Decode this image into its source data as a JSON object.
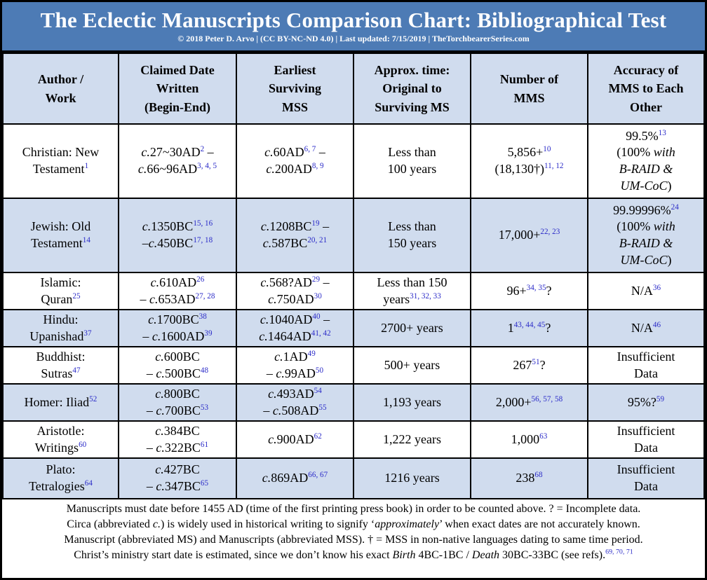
{
  "colors": {
    "band_bg": "#4d7bb5",
    "row_alt_bg": "#d0dcee",
    "header_bg": "#d0dcee",
    "sup": "#2b2bc8",
    "border": "#000000",
    "title_text": "#ffffff"
  },
  "header": {
    "title": "The Eclectic Manuscripts Comparison Chart: Bibliographical Test",
    "subtitle": "© 2018 Peter D. Arvo | (CC BY-NC-ND 4.0) | Last updated: 7/15/2019 | TheTorchbearerSeries.com"
  },
  "table": {
    "columns": [
      "Author /\nWork",
      "Claimed Date\nWritten\n(Begin-End)",
      "Earliest\nSurviving\nMSS",
      "Approx. time:\nOriginal to\nSurviving MS",
      "Number of\nMMS",
      "Accuracy of\nMMS to Each\nOther"
    ],
    "rows": [
      {
        "cells": [
          "Christian: New\nTestament^1^",
          "*c.*27~30AD^2^ –\n*c.*66~96AD^3, 4, 5^",
          "*c.*60AD^6, 7^ –\n*c.*200AD^8, 9^",
          "Less than\n100 years",
          "5,856+^10^\n(18,130†)^11, 12^",
          "99.5%^13^\n(100% *with*\n*B-RAID &*\n*UM-CoC*)"
        ]
      },
      {
        "cells": [
          "Jewish: Old\nTestament^14^",
          "*c.*1350BC^15, 16^\n–*c.*450BC^17, 18^",
          "*c.*1208BC^19^ –\n*c.*587BC^20, 21^",
          "Less than\n150 years",
          "17,000+^22, 23^",
          "99.99996%^24^\n(100% *with*\n*B-RAID &*\n*UM-CoC*)"
        ]
      },
      {
        "cells": [
          "Islamic:\nQuran^25^",
          "*c.*610AD^26^\n– *c.*653AD^27, 28^",
          "*c.*568?AD^29^ –\n*c.*750AD^30^",
          "Less than 150\nyears^31, 32, 33^",
          "96+^34, 35^?",
          "N/A^36^"
        ]
      },
      {
        "cells": [
          "Hindu:\nUpanishad^37^",
          "*c.*1700BC^38^\n– *c.*1600AD^39^",
          "*c.*1040AD^40^ –\n*c.*1464AD^41, 42^",
          "2700+ years",
          "1^43, 44, 45^?",
          "N/A^46^"
        ]
      },
      {
        "cells": [
          "Buddhist:\nSutras^47^",
          "*c.*600BC\n– *c.*500BC^48^",
          "*c.*1AD^49^\n– *c.*99AD^50^",
          "500+ years",
          "267^51^?",
          "Insufficient\nData"
        ]
      },
      {
        "cells": [
          "Homer: Iliad^52^",
          "*c.*800BC\n– *c.*700BC^53^",
          "*c.*493AD^54^\n– *c.*508AD^55^",
          "1,193 years",
          "2,000+^56, 57, 58^",
          "95%?^59^"
        ]
      },
      {
        "cells": [
          "Aristotle:\nWritings^60^",
          "*c.*384BC\n– *c.*322BC^61^",
          "*c.*900AD^62^",
          "1,222 years",
          "1,000^63^",
          "Insufficient\nData"
        ]
      },
      {
        "cells": [
          "Plato:\nTetralogies^64^",
          "*c.*427BC\n– *c.*347BC^65^",
          "*c.*869AD^66, 67^",
          "1216 years",
          "238^68^",
          "Insufficient\nData"
        ]
      }
    ]
  },
  "footnotes": [
    "Manuscripts must date before 1455 AD (time of the first printing press book) in order to be counted above. ? = Incomplete data.",
    "Circa (abbreviated *c.*) is widely used in historical writing to signify ‘*approximately*’ when exact dates are not accurately known.",
    "Manuscript (abbreviated MS) and Manuscripts (abbreviated MSS). † = MSS in non-native languages dating to same time period.",
    "Christ’s ministry start date is estimated, since we don’t know his exact *Birth* 4BC-1BC / *Death* 30BC-33BC (see refs).^69, 70, 71^"
  ],
  "chart_data": {
    "type": "table",
    "title": "The Eclectic Manuscripts Comparison Chart: Bibliographical Test",
    "columns": [
      "Author / Work",
      "Claimed Date Written (Begin-End)",
      "Earliest Surviving MSS",
      "Approx. time: Original to Surviving MS",
      "Number of MMS",
      "Accuracy of MMS to Each Other"
    ],
    "rows": [
      [
        "Christian: New Testament[1]",
        "c.27~30AD[2] – c.66~96AD[3,4,5]",
        "c.60AD[6,7] – c.200AD[8,9]",
        "Less than 100 years",
        "5,856+[10] (18,130†)[11,12]",
        "99.5%[13] (100% with B-RAID & UM-CoC)"
      ],
      [
        "Jewish: Old Testament[14]",
        "c.1350BC[15,16] – c.450BC[17,18]",
        "c.1208BC[19] – c.587BC[20,21]",
        "Less than 150 years",
        "17,000+[22,23]",
        "99.99996%[24] (100% with B-RAID & UM-CoC)"
      ],
      [
        "Islamic: Quran[25]",
        "c.610AD[26] – c.653AD[27,28]",
        "c.568?AD[29] – c.750AD[30]",
        "Less than 150 years[31,32,33]",
        "96+[34,35]?",
        "N/A[36]"
      ],
      [
        "Hindu: Upanishad[37]",
        "c.1700BC[38] – c.1600AD[39]",
        "c.1040AD[40] – c.1464AD[41,42]",
        "2700+ years",
        "1[43,44,45]?",
        "N/A[46]"
      ],
      [
        "Buddhist: Sutras[47]",
        "c.600BC – c.500BC[48]",
        "c.1AD[49] – c.99AD[50]",
        "500+ years",
        "267[51]?",
        "Insufficient Data"
      ],
      [
        "Homer: Iliad[52]",
        "c.800BC – c.700BC[53]",
        "c.493AD[54] – c.508AD[55]",
        "1,193 years",
        "2,000+[56,57,58]",
        "95%?[59]"
      ],
      [
        "Aristotle: Writings[60]",
        "c.384BC – c.322BC[61]",
        "c.900AD[62]",
        "1,222 years",
        "1,000[63]",
        "Insufficient Data"
      ],
      [
        "Plato: Tetralogies[64]",
        "c.427BC – c.347BC[65]",
        "c.869AD[66,67]",
        "1216 years",
        "238[68]",
        "Insufficient Data"
      ]
    ]
  }
}
